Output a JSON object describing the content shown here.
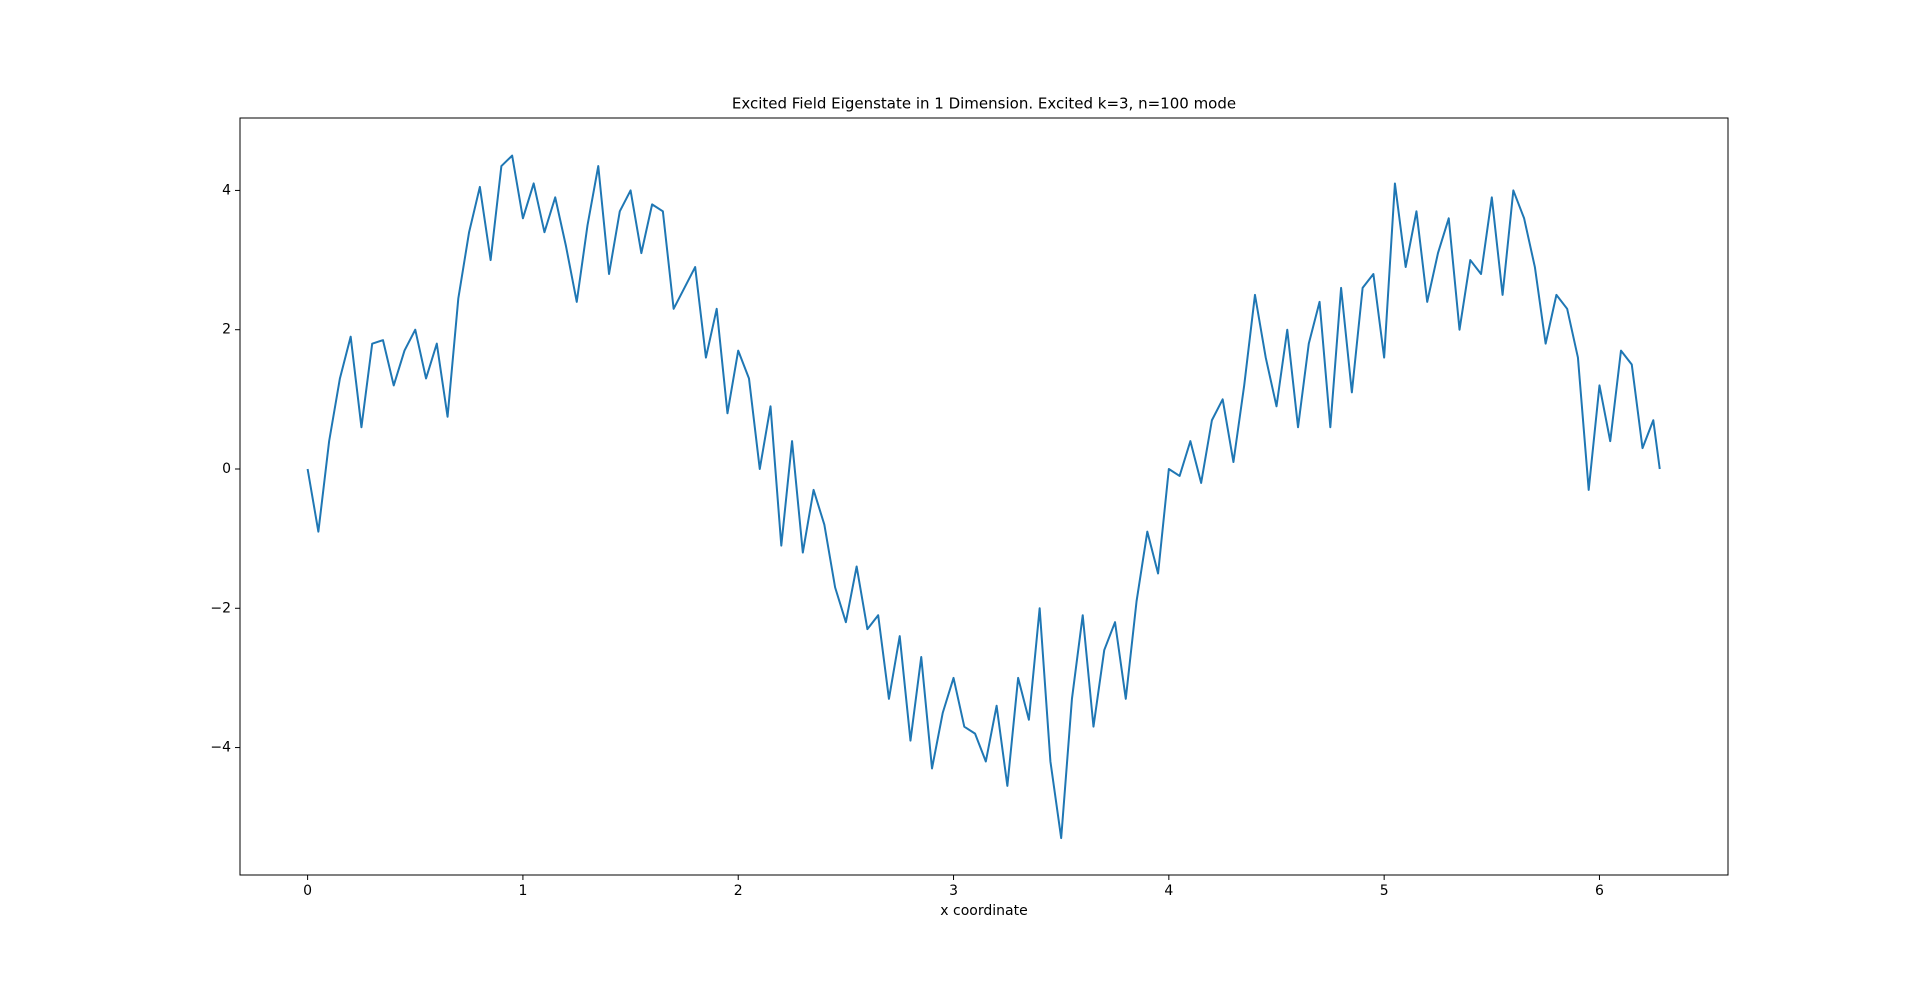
{
  "chart_data": {
    "type": "line",
    "title": "Excited Field Eigenstate in 1 Dimension. Excited k=3, n=100 mode",
    "xlabel": "x coordinate",
    "color": "#1f77b4",
    "xlim": [
      -0.314,
      6.597
    ],
    "ylim": [
      -5.83,
      5.04
    ],
    "xticks": [
      0,
      1,
      2,
      3,
      4,
      5,
      6
    ],
    "yticks": [
      {
        "value": -4,
        "label": "−4"
      },
      {
        "value": -2,
        "label": "−2"
      },
      0,
      2,
      4
    ],
    "x": [
      0.0,
      0.05,
      0.1,
      0.15,
      0.2,
      0.25,
      0.3,
      0.35,
      0.4,
      0.45,
      0.5,
      0.55,
      0.6,
      0.65,
      0.7,
      0.75,
      0.8,
      0.85,
      0.9,
      0.95,
      1.0,
      1.05,
      1.1,
      1.15,
      1.2,
      1.25,
      1.3,
      1.35,
      1.4,
      1.45,
      1.5,
      1.55,
      1.6,
      1.65,
      1.7,
      1.75,
      1.8,
      1.85,
      1.9,
      1.95,
      2.0,
      2.05,
      2.1,
      2.15,
      2.2,
      2.25,
      2.3,
      2.35,
      2.4,
      2.45,
      2.5,
      2.55,
      2.6,
      2.65,
      2.7,
      2.75,
      2.8,
      2.85,
      2.9,
      2.95,
      3.0,
      3.05,
      3.1,
      3.15,
      3.2,
      3.25,
      3.3,
      3.35,
      3.4,
      3.45,
      3.5,
      3.55,
      3.6,
      3.65,
      3.7,
      3.75,
      3.8,
      3.85,
      3.9,
      3.95,
      4.0,
      4.05,
      4.1,
      4.15,
      4.2,
      4.25,
      4.3,
      4.35,
      4.4,
      4.45,
      4.5,
      4.55,
      4.6,
      4.65,
      4.7,
      4.75,
      4.8,
      4.85,
      4.9,
      4.95,
      5.0,
      5.05,
      5.1,
      5.15,
      5.2,
      5.25,
      5.3,
      5.35,
      5.4,
      5.45,
      5.5,
      5.55,
      5.6,
      5.65,
      5.7,
      5.75,
      5.8,
      5.85,
      5.9,
      5.95,
      6.0,
      6.05,
      6.1,
      6.15,
      6.2,
      6.25,
      6.28
    ],
    "values": [
      0.0,
      -0.9,
      0.4,
      1.3,
      1.9,
      0.6,
      1.8,
      1.85,
      1.2,
      1.7,
      2.0,
      1.3,
      1.8,
      0.75,
      2.45,
      3.4,
      4.05,
      3.0,
      4.35,
      4.5,
      3.6,
      4.1,
      3.4,
      3.9,
      3.2,
      2.4,
      3.5,
      4.35,
      2.8,
      3.7,
      4.0,
      3.1,
      3.8,
      3.7,
      2.3,
      2.6,
      2.9,
      1.6,
      2.3,
      0.8,
      1.7,
      1.3,
      0.0,
      0.9,
      -1.1,
      0.4,
      -1.2,
      -0.3,
      -0.8,
      -1.7,
      -2.2,
      -1.4,
      -2.3,
      -2.1,
      -3.3,
      -2.4,
      -3.9,
      -2.7,
      -4.3,
      -3.5,
      -3.0,
      -3.7,
      -3.8,
      -4.2,
      -3.4,
      -4.55,
      -3.0,
      -3.6,
      -2.0,
      -4.2,
      -5.3,
      -3.3,
      -2.1,
      -3.7,
      -2.6,
      -2.2,
      -3.3,
      -1.9,
      -0.9,
      -1.5,
      0.0,
      -0.1,
      0.4,
      -0.2,
      0.7,
      1.0,
      0.1,
      1.2,
      2.5,
      1.6,
      0.9,
      2.0,
      0.6,
      1.8,
      2.4,
      0.6,
      2.6,
      1.1,
      2.6,
      2.8,
      1.6,
      4.1,
      2.9,
      3.7,
      2.4,
      3.1,
      3.6,
      2.0,
      3.0,
      2.8,
      3.9,
      2.5,
      4.0,
      3.6,
      2.9,
      1.8,
      2.5,
      2.3,
      1.6,
      -0.3,
      1.2,
      0.4,
      1.7,
      1.5,
      0.3,
      0.7,
      0.0
    ]
  }
}
